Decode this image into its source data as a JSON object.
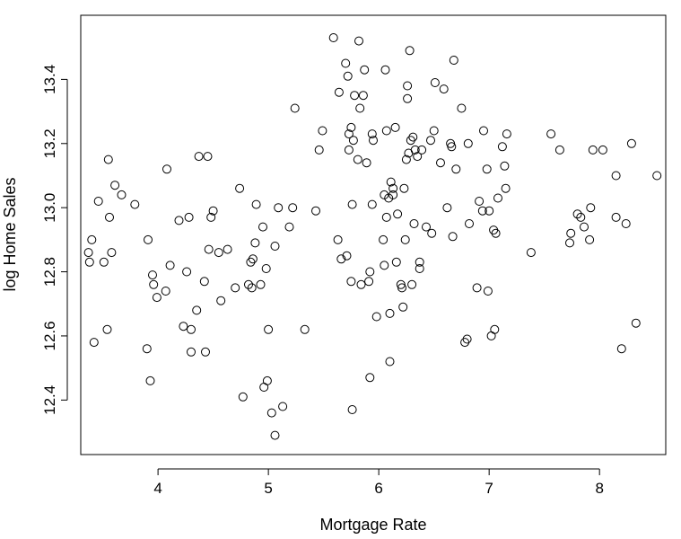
{
  "chart_data": {
    "type": "scatter",
    "title": "",
    "xlabel": "Mortgage Rate",
    "ylabel": "log Home Sales",
    "xlim": [
      3.3,
      8.6
    ],
    "ylim": [
      12.23,
      13.6
    ],
    "x_ticks": [
      4,
      5,
      6,
      7,
      8
    ],
    "y_ticks": [
      12.4,
      12.6,
      12.8,
      13.0,
      13.2,
      13.4
    ],
    "x_tick_labels": [
      "4",
      "5",
      "6",
      "7",
      "8"
    ],
    "y_tick_labels": [
      "12.4",
      "12.6",
      "12.8",
      "13.0",
      "13.2",
      "13.4"
    ],
    "grid": false,
    "legend": "none",
    "marker": "open-circle",
    "color": "#000000",
    "points": [
      [
        3.37,
        12.86
      ],
      [
        3.38,
        12.83
      ],
      [
        3.4,
        12.9
      ],
      [
        3.42,
        12.58
      ],
      [
        3.46,
        13.02
      ],
      [
        3.51,
        12.83
      ],
      [
        3.54,
        12.62
      ],
      [
        3.55,
        13.15
      ],
      [
        3.56,
        12.97
      ],
      [
        3.58,
        12.86
      ],
      [
        3.61,
        13.07
      ],
      [
        3.67,
        13.04
      ],
      [
        3.79,
        13.01
      ],
      [
        3.9,
        12.56
      ],
      [
        3.91,
        12.9
      ],
      [
        3.93,
        12.46
      ],
      [
        3.95,
        12.79
      ],
      [
        3.96,
        12.76
      ],
      [
        3.99,
        12.72
      ],
      [
        4.07,
        12.74
      ],
      [
        4.08,
        13.12
      ],
      [
        4.11,
        12.82
      ],
      [
        4.19,
        12.96
      ],
      [
        4.23,
        12.63
      ],
      [
        4.26,
        12.8
      ],
      [
        4.28,
        12.97
      ],
      [
        4.3,
        12.62
      ],
      [
        4.3,
        12.55
      ],
      [
        4.35,
        12.68
      ],
      [
        4.37,
        13.16
      ],
      [
        4.42,
        12.77
      ],
      [
        4.43,
        12.55
      ],
      [
        4.45,
        13.16
      ],
      [
        4.46,
        12.87
      ],
      [
        4.48,
        12.97
      ],
      [
        4.5,
        12.99
      ],
      [
        4.55,
        12.86
      ],
      [
        4.57,
        12.71
      ],
      [
        4.63,
        12.87
      ],
      [
        4.7,
        12.75
      ],
      [
        4.74,
        13.06
      ],
      [
        4.77,
        12.41
      ],
      [
        4.82,
        12.76
      ],
      [
        4.84,
        12.83
      ],
      [
        4.85,
        12.75
      ],
      [
        4.86,
        12.84
      ],
      [
        4.88,
        12.89
      ],
      [
        4.89,
        13.01
      ],
      [
        4.93,
        12.76
      ],
      [
        4.95,
        12.94
      ],
      [
        4.96,
        12.44
      ],
      [
        4.98,
        12.81
      ],
      [
        4.99,
        12.46
      ],
      [
        5.0,
        12.62
      ],
      [
        5.03,
        12.36
      ],
      [
        5.06,
        12.88
      ],
      [
        5.06,
        12.29
      ],
      [
        5.09,
        13.0
      ],
      [
        5.13,
        12.38
      ],
      [
        5.19,
        12.94
      ],
      [
        5.22,
        13.0
      ],
      [
        5.24,
        13.31
      ],
      [
        5.33,
        12.62
      ],
      [
        5.43,
        12.99
      ],
      [
        5.46,
        13.18
      ],
      [
        5.49,
        13.24
      ],
      [
        5.59,
        13.53
      ],
      [
        5.63,
        12.9
      ],
      [
        5.64,
        13.36
      ],
      [
        5.66,
        12.84
      ],
      [
        5.7,
        13.45
      ],
      [
        5.71,
        12.85
      ],
      [
        5.72,
        13.41
      ],
      [
        5.73,
        13.23
      ],
      [
        5.73,
        13.18
      ],
      [
        5.75,
        13.25
      ],
      [
        5.75,
        12.77
      ],
      [
        5.76,
        13.01
      ],
      [
        5.76,
        12.37
      ],
      [
        5.77,
        13.21
      ],
      [
        5.78,
        13.35
      ],
      [
        5.81,
        13.15
      ],
      [
        5.82,
        13.52
      ],
      [
        5.83,
        13.31
      ],
      [
        5.84,
        12.76
      ],
      [
        5.86,
        13.35
      ],
      [
        5.87,
        13.43
      ],
      [
        5.89,
        13.14
      ],
      [
        5.91,
        12.77
      ],
      [
        5.92,
        12.8
      ],
      [
        5.92,
        12.47
      ],
      [
        5.94,
        13.23
      ],
      [
        5.94,
        13.01
      ],
      [
        5.95,
        13.21
      ],
      [
        5.98,
        12.66
      ],
      [
        6.04,
        12.9
      ],
      [
        6.05,
        13.04
      ],
      [
        6.05,
        12.82
      ],
      [
        6.06,
        13.43
      ],
      [
        6.07,
        13.24
      ],
      [
        6.07,
        12.97
      ],
      [
        6.09,
        13.03
      ],
      [
        6.1,
        12.52
      ],
      [
        6.1,
        12.67
      ],
      [
        6.11,
        13.08
      ],
      [
        6.13,
        13.06
      ],
      [
        6.13,
        13.04
      ],
      [
        6.15,
        13.25
      ],
      [
        6.16,
        12.83
      ],
      [
        6.17,
        12.98
      ],
      [
        6.2,
        12.76
      ],
      [
        6.21,
        12.75
      ],
      [
        6.22,
        12.69
      ],
      [
        6.23,
        13.06
      ],
      [
        6.24,
        12.9
      ],
      [
        6.25,
        13.15
      ],
      [
        6.26,
        13.38
      ],
      [
        6.26,
        13.34
      ],
      [
        6.27,
        13.17
      ],
      [
        6.28,
        13.49
      ],
      [
        6.29,
        13.21
      ],
      [
        6.3,
        12.76
      ],
      [
        6.31,
        13.22
      ],
      [
        6.32,
        12.95
      ],
      [
        6.33,
        13.18
      ],
      [
        6.35,
        13.16
      ],
      [
        6.37,
        12.83
      ],
      [
        6.37,
        12.81
      ],
      [
        6.39,
        13.18
      ],
      [
        6.43,
        12.94
      ],
      [
        6.47,
        13.21
      ],
      [
        6.48,
        12.92
      ],
      [
        6.5,
        13.24
      ],
      [
        6.51,
        13.39
      ],
      [
        6.56,
        13.14
      ],
      [
        6.59,
        13.37
      ],
      [
        6.62,
        13.0
      ],
      [
        6.65,
        13.2
      ],
      [
        6.66,
        13.19
      ],
      [
        6.67,
        12.91
      ],
      [
        6.68,
        13.46
      ],
      [
        6.7,
        13.12
      ],
      [
        6.75,
        13.31
      ],
      [
        6.78,
        12.58
      ],
      [
        6.8,
        12.59
      ],
      [
        6.81,
        13.2
      ],
      [
        6.82,
        12.95
      ],
      [
        6.89,
        12.75
      ],
      [
        6.91,
        13.02
      ],
      [
        6.94,
        12.99
      ],
      [
        6.95,
        13.24
      ],
      [
        6.98,
        13.12
      ],
      [
        6.99,
        12.74
      ],
      [
        7.0,
        12.99
      ],
      [
        7.02,
        12.6
      ],
      [
        7.04,
        12.93
      ],
      [
        7.05,
        12.62
      ],
      [
        7.06,
        12.92
      ],
      [
        7.08,
        13.03
      ],
      [
        7.12,
        13.19
      ],
      [
        7.14,
        13.13
      ],
      [
        7.15,
        13.06
      ],
      [
        7.16,
        13.23
      ],
      [
        7.38,
        12.86
      ],
      [
        7.56,
        13.23
      ],
      [
        7.64,
        13.18
      ],
      [
        7.73,
        12.89
      ],
      [
        7.74,
        12.92
      ],
      [
        7.8,
        12.98
      ],
      [
        7.83,
        12.97
      ],
      [
        7.86,
        12.94
      ],
      [
        7.91,
        12.9
      ],
      [
        7.92,
        13.0
      ],
      [
        7.94,
        13.18
      ],
      [
        8.03,
        13.18
      ],
      [
        8.15,
        12.97
      ],
      [
        8.15,
        13.1
      ],
      [
        8.2,
        12.56
      ],
      [
        8.24,
        12.95
      ],
      [
        8.29,
        13.2
      ],
      [
        8.33,
        12.64
      ],
      [
        8.52,
        13.1
      ]
    ]
  }
}
